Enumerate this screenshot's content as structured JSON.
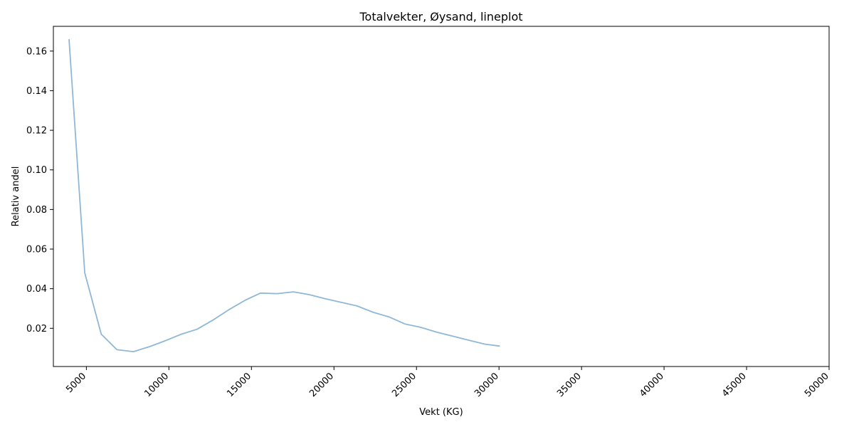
{
  "chart_data": {
    "type": "line",
    "title": "Totalvekter, Øysand, lineplot",
    "xlabel": "Vekt (KG)",
    "ylabel": "Relativ andel",
    "xlim": [
      3000,
      50000
    ],
    "ylim": [
      0.0007,
      0.1725
    ],
    "x_ticks": [
      5000,
      10000,
      15000,
      20000,
      25000,
      30000,
      35000,
      40000,
      45000,
      50000
    ],
    "y_ticks": [
      0.02,
      0.04,
      0.06,
      0.08,
      0.1,
      0.12,
      0.14,
      0.16
    ],
    "x_tick_labels": [
      "5000",
      "10000",
      "15000",
      "20000",
      "25000",
      "30000",
      "35000",
      "40000",
      "45000",
      "50000"
    ],
    "y_tick_labels": [
      "0.02",
      "0.04",
      "0.06",
      "0.08",
      "0.10",
      "0.12",
      "0.14",
      "0.16"
    ],
    "grid": false,
    "line_color": "#8fb8d6",
    "series": [
      {
        "x": [
          3950,
          4900,
          5900,
          6850,
          7850,
          8850,
          9800,
          10750,
          11700,
          12700,
          13700,
          14650,
          15550,
          16550,
          17550,
          18500,
          19450,
          20400,
          21400,
          22400,
          23350,
          24300,
          25250,
          26250,
          27200,
          28200,
          29150,
          30050
        ],
        "values": [
          0.166,
          0.048,
          0.017,
          0.0092,
          0.0082,
          0.0108,
          0.0138,
          0.017,
          0.0195,
          0.0243,
          0.0297,
          0.0343,
          0.0378,
          0.0375,
          0.0384,
          0.037,
          0.035,
          0.0332,
          0.0313,
          0.028,
          0.0257,
          0.0222,
          0.0205,
          0.018,
          0.016,
          0.0139,
          0.012,
          0.011
        ]
      }
    ]
  }
}
